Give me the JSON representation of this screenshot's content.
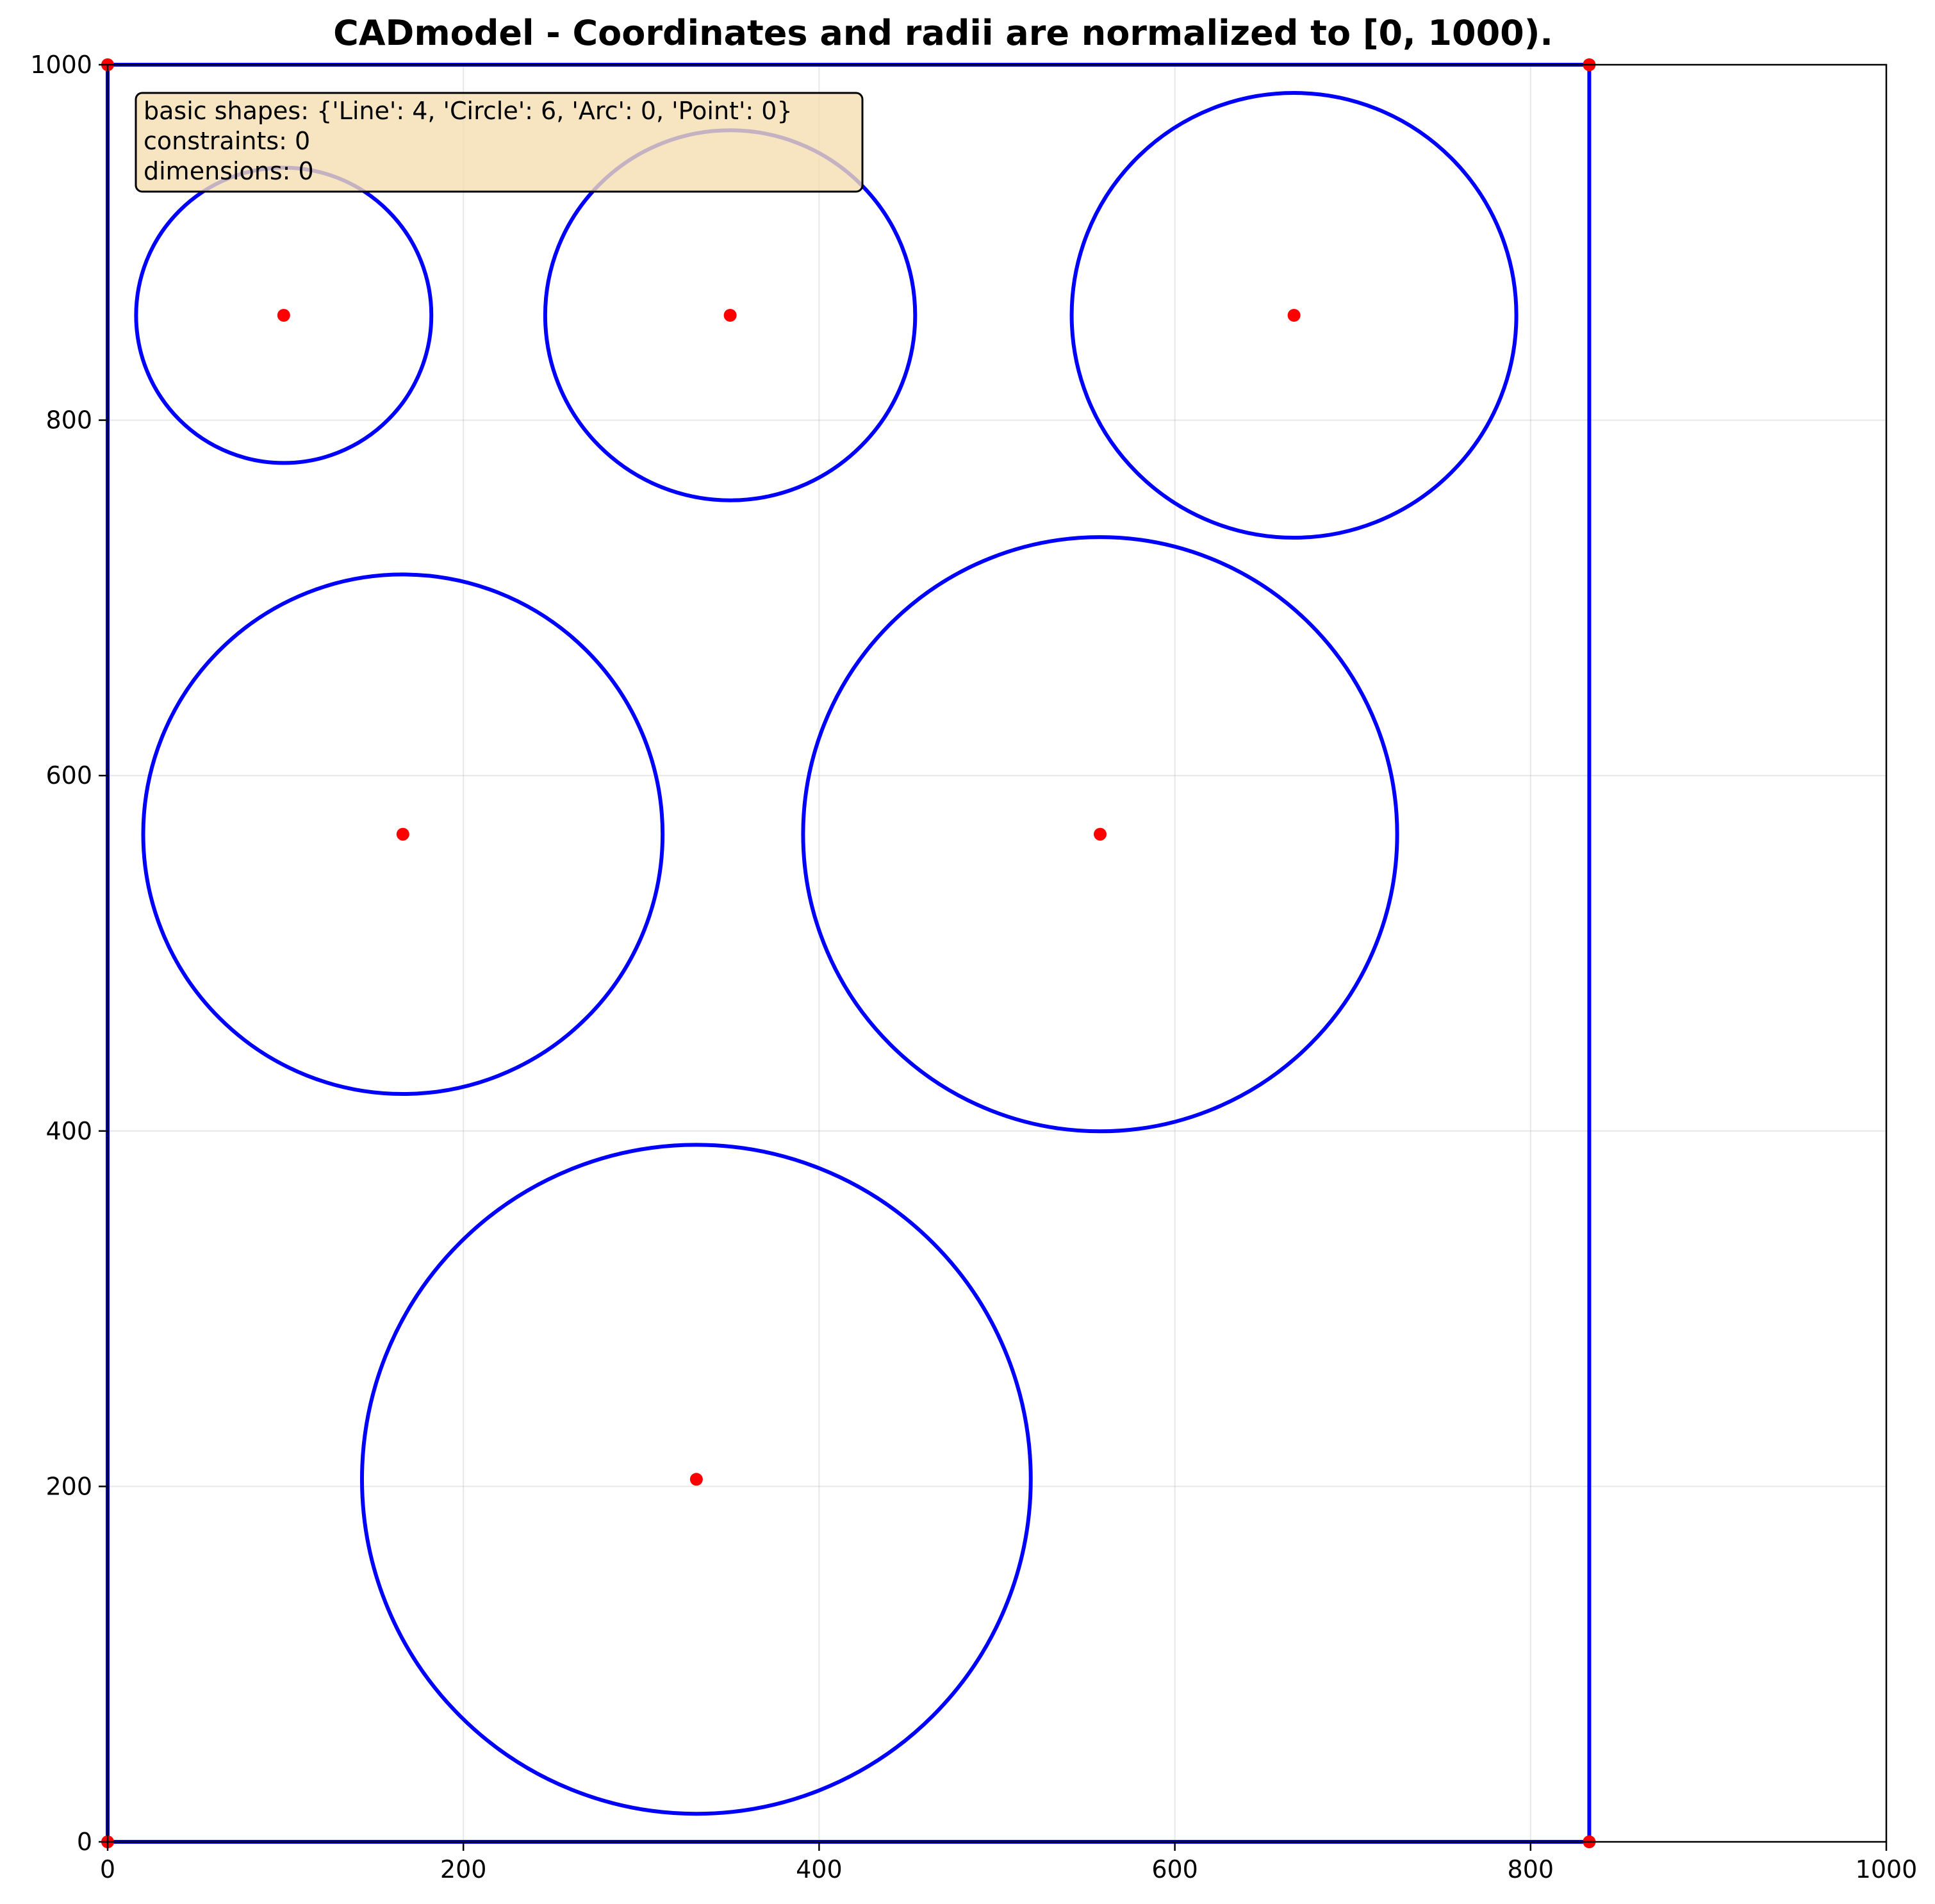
{
  "chart_data": {
    "type": "diagram",
    "title": "CADmodel - Coordinates and radii are normalized to [0, 1000).",
    "xlim": [
      0,
      1000
    ],
    "ylim": [
      0,
      1000
    ],
    "x_ticks": [
      0,
      200,
      400,
      600,
      800,
      1000
    ],
    "y_ticks": [
      0,
      200,
      400,
      600,
      800,
      1000
    ],
    "grid": true,
    "colors": {
      "shape": "#0000ff",
      "point": "#ff0000",
      "info_box_fill": "#f5deb3"
    },
    "lines": [
      {
        "x1": 0,
        "y1": 0,
        "x2": 833,
        "y2": 0
      },
      {
        "x1": 833,
        "y1": 0,
        "x2": 833,
        "y2": 1000
      },
      {
        "x1": 833,
        "y1": 1000,
        "x2": 0,
        "y2": 1000
      },
      {
        "x1": 0,
        "y1": 1000,
        "x2": 0,
        "y2": 0
      }
    ],
    "circles": [
      {
        "cx": 99,
        "cy": 859,
        "r": 83
      },
      {
        "cx": 350,
        "cy": 859,
        "r": 104
      },
      {
        "cx": 667,
        "cy": 859,
        "r": 125
      },
      {
        "cx": 166,
        "cy": 567,
        "r": 146
      },
      {
        "cx": 558,
        "cy": 567,
        "r": 167
      },
      {
        "cx": 331,
        "cy": 204,
        "r": 188
      }
    ],
    "points": [
      {
        "x": 0,
        "y": 0
      },
      {
        "x": 833,
        "y": 0
      },
      {
        "x": 833,
        "y": 1000
      },
      {
        "x": 0,
        "y": 1000
      }
    ],
    "info_box": {
      "placement": "top-left",
      "lines": [
        "basic shapes: {'Line': 4, 'Circle': 6, 'Arc': 0, 'Point': 0}",
        "constraints: 0",
        "dimensions: 0"
      ]
    }
  }
}
